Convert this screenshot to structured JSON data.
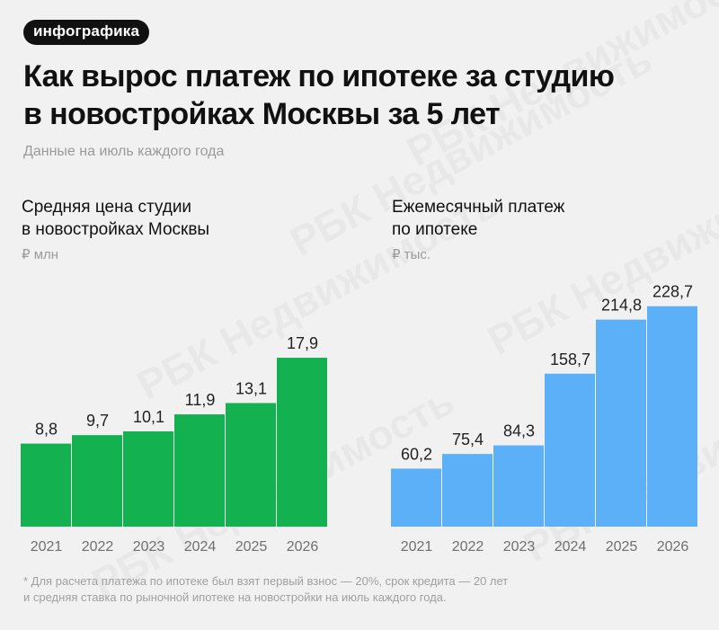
{
  "tag": "инфографика",
  "title_line1": "Как вырос платеж по ипотеке за студию",
  "title_line2": "в новостройках Москвы за 5 лет",
  "subtitle": "Данные на июль каждого года",
  "watermark": "РБК Недвижимость",
  "footnote_line1": "* Для расчета платежа по ипотеке был взят первый взнос — 20%, срок кредита — 20 лет",
  "footnote_line2": "и средняя ставка по рыночной ипотеке на новостройки на июль каждого года.",
  "colors": {
    "left_bar": "#14b150",
    "right_bar": "#5cb0f8"
  },
  "chart_data": [
    {
      "type": "bar",
      "title_line1": "Средняя цена студии",
      "title_line2": "в новостройках Москвы",
      "unit": "₽ млн",
      "categories": [
        "2021",
        "2022",
        "2023",
        "2024",
        "2025",
        "2026"
      ],
      "values": [
        8.8,
        9.7,
        10.1,
        11.9,
        13.1,
        17.9
      ],
      "value_labels": [
        "8,8",
        "9,7",
        "10,1",
        "11,9",
        "13,1",
        "17,9"
      ]
    },
    {
      "type": "bar",
      "title_line1": "Ежемесячный платеж",
      "title_line2": "по ипотеке",
      "unit": "₽ тыс.",
      "categories": [
        "2021",
        "2022",
        "2023",
        "2024",
        "2025",
        "2026"
      ],
      "values": [
        60.2,
        75.4,
        84.3,
        158.7,
        214.8,
        228.7
      ],
      "value_labels": [
        "60,2",
        "75,4",
        "84,3",
        "158,7",
        "214,8",
        "228,7"
      ]
    }
  ]
}
